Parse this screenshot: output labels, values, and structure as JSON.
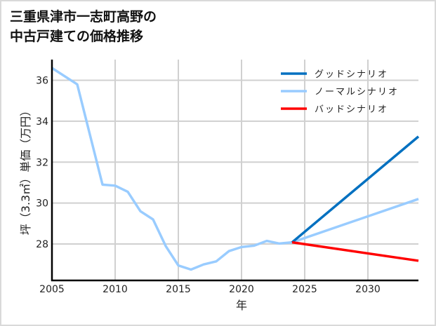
{
  "title_lines": [
    "三重県津市一志町高野の",
    "中古戸建ての価格推移"
  ],
  "colors": {
    "good": "#0070c0",
    "normal": "#99ccff",
    "bad": "#ff0000",
    "grid": "#d0d0d0",
    "axis": "#000000"
  },
  "chart_data": {
    "type": "line",
    "title": "三重県津市一志町高野の中古戸建ての価格推移",
    "xlabel": "年",
    "ylabel": "坪（3.3㎡）単価（万円）",
    "xlim": [
      2005,
      2034
    ],
    "ylim": [
      26.2,
      37
    ],
    "x_ticks": [
      2005,
      2010,
      2015,
      2020,
      2025,
      2030
    ],
    "y_ticks": [
      28,
      30,
      32,
      34,
      36
    ],
    "grid": true,
    "legend_position": "upper right",
    "series": [
      {
        "name": "グッドシナリオ",
        "color": "#0070c0",
        "x": [
          2005,
          2007,
          2009,
          2010,
          2011,
          2012,
          2013,
          2014,
          2015,
          2016,
          2017,
          2018,
          2019,
          2020,
          2021,
          2022,
          2023,
          2024,
          2034
        ],
        "values": [
          36.6,
          35.8,
          30.9,
          30.85,
          30.55,
          29.6,
          29.2,
          27.9,
          26.95,
          26.75,
          27.0,
          27.15,
          27.65,
          27.85,
          27.92,
          28.15,
          28.02,
          28.08,
          33.25
        ]
      },
      {
        "name": "ノーマルシナリオ",
        "color": "#99ccff",
        "x": [
          2005,
          2007,
          2009,
          2010,
          2011,
          2012,
          2013,
          2014,
          2015,
          2016,
          2017,
          2018,
          2019,
          2020,
          2021,
          2022,
          2023,
          2024,
          2034
        ],
        "values": [
          36.6,
          35.8,
          30.9,
          30.85,
          30.55,
          29.6,
          29.2,
          27.9,
          26.95,
          26.75,
          27.0,
          27.15,
          27.65,
          27.85,
          27.92,
          28.15,
          28.02,
          28.08,
          30.2
        ]
      },
      {
        "name": "バッドシナリオ",
        "color": "#ff0000",
        "x": [
          2024,
          2034
        ],
        "values": [
          28.08,
          27.18
        ]
      }
    ]
  }
}
